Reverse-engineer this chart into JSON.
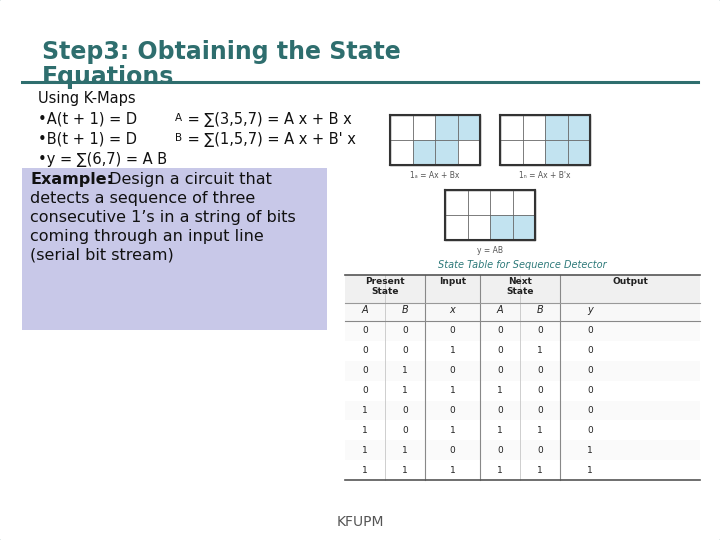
{
  "title_line1": "Step3: Obtaining the State",
  "title_line2": "Equations",
  "title_color": "#2E6E6E",
  "bg_color": "#FFFFFF",
  "border_color": "#3D7A7A",
  "slide_bg": "#E8E8E8",
  "line_color": "#2E6E6E",
  "footer": "KFUPM",
  "footer_color": "#555555",
  "example_box_color": "#C8C8E8",
  "table_data": [
    [
      0,
      0,
      0,
      0,
      0,
      0
    ],
    [
      0,
      0,
      1,
      0,
      1,
      0
    ],
    [
      0,
      1,
      0,
      0,
      0,
      0
    ],
    [
      0,
      1,
      1,
      1,
      0,
      0
    ],
    [
      1,
      0,
      0,
      0,
      0,
      0
    ],
    [
      1,
      0,
      1,
      1,
      1,
      0
    ],
    [
      1,
      1,
      0,
      0,
      0,
      1
    ],
    [
      1,
      1,
      1,
      1,
      1,
      1
    ]
  ]
}
